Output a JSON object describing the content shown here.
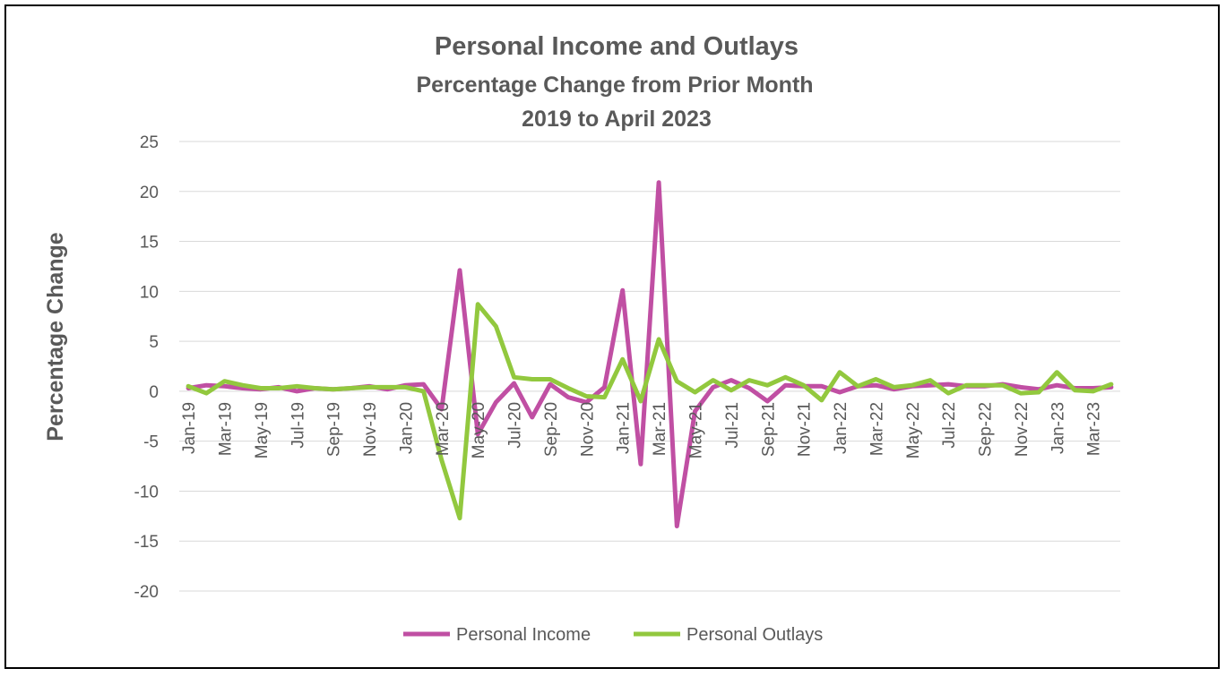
{
  "chart_data": {
    "type": "line",
    "title": "Personal Income and Outlays",
    "subtitle_lines": [
      "Percentage Change from Prior Month",
      "2019 to April 2023"
    ],
    "ylabel": "Percentage Change",
    "xlabel": "",
    "ylim": [
      -20,
      25
    ],
    "yticks": [
      25,
      20,
      15,
      10,
      5,
      0,
      -5,
      -10,
      -15,
      -20
    ],
    "grid": true,
    "legend": "bottom",
    "x": [
      "Jan-19",
      "Feb-19",
      "Mar-19",
      "Apr-19",
      "May-19",
      "Jun-19",
      "Jul-19",
      "Aug-19",
      "Sep-19",
      "Oct-19",
      "Nov-19",
      "Dec-19",
      "Jan-20",
      "Feb-20",
      "Mar-20",
      "Apr-20",
      "May-20",
      "Jun-20",
      "Jul-20",
      "Aug-20",
      "Sep-20",
      "Oct-20",
      "Nov-20",
      "Dec-20",
      "Jan-21",
      "Feb-21",
      "Mar-21",
      "Apr-21",
      "May-21",
      "Jun-21",
      "Jul-21",
      "Aug-21",
      "Sep-21",
      "Oct-21",
      "Nov-21",
      "Dec-21",
      "Jan-22",
      "Feb-22",
      "Mar-22",
      "Apr-22",
      "May-22",
      "Jun-22",
      "Jul-22",
      "Aug-22",
      "Sep-22",
      "Oct-22",
      "Nov-22",
      "Dec-22",
      "Jan-23",
      "Feb-23",
      "Mar-23",
      "Apr-23"
    ],
    "xtick_labels": [
      "Jan-19",
      "Mar-19",
      "May-19",
      "Jul-19",
      "Sep-19",
      "Nov-19",
      "Jan-20",
      "Mar-20",
      "May-20",
      "Jul-20",
      "Sep-20",
      "Nov-20",
      "Jan-21",
      "Mar-21",
      "May-21",
      "Jul-21",
      "Sep-21",
      "Nov-21",
      "Jan-22",
      "Mar-22",
      "May-22",
      "Jul-22",
      "Sep-22",
      "Nov-22",
      "Jan-23",
      "Mar-23"
    ],
    "series": [
      {
        "name": "Personal Income",
        "color": "#c04fa3",
        "values": [
          0.3,
          0.6,
          0.5,
          0.3,
          0.2,
          0.4,
          0.0,
          0.3,
          0.2,
          0.3,
          0.5,
          0.2,
          0.6,
          0.7,
          -1.8,
          12.1,
          -4.3,
          -1.1,
          0.8,
          -2.6,
          0.7,
          -0.6,
          -1.1,
          0.4,
          10.1,
          -7.3,
          20.9,
          -13.5,
          -2.0,
          0.4,
          1.1,
          0.3,
          -1.0,
          0.6,
          0.5,
          0.5,
          -0.1,
          0.5,
          0.6,
          0.2,
          0.5,
          0.6,
          0.7,
          0.5,
          0.5,
          0.7,
          0.4,
          0.2,
          0.6,
          0.3,
          0.3,
          0.4
        ]
      },
      {
        "name": "Personal Outlays",
        "color": "#92c83e",
        "values": [
          0.5,
          -0.2,
          1.0,
          0.6,
          0.3,
          0.3,
          0.5,
          0.3,
          0.2,
          0.3,
          0.4,
          0.4,
          0.4,
          0.0,
          -6.9,
          -12.7,
          8.7,
          6.5,
          1.4,
          1.2,
          1.2,
          0.3,
          -0.5,
          -0.6,
          3.2,
          -1.0,
          5.2,
          1.0,
          -0.1,
          1.1,
          0.1,
          1.1,
          0.6,
          1.4,
          0.6,
          -0.9,
          1.9,
          0.5,
          1.2,
          0.4,
          0.6,
          1.1,
          -0.2,
          0.6,
          0.6,
          0.6,
          -0.2,
          -0.1,
          1.9,
          0.1,
          0.0,
          0.7
        ]
      }
    ]
  }
}
